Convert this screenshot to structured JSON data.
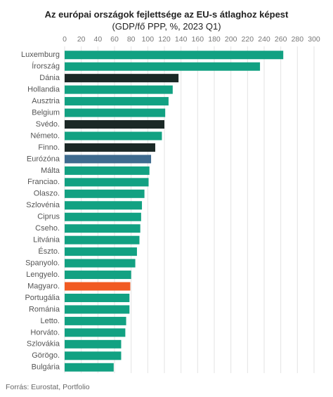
{
  "chart_data": {
    "type": "barh",
    "title": "Az európai országok fejlettsége az EU-s átlaghoz képest",
    "subtitle": "(GDP/fő PPP, %, 2023 Q1)",
    "source": "Forrás: Eurostat, Portfolio",
    "categories": [
      "Luxemburg",
      "Írország",
      "Dánia",
      "Hollandia",
      "Ausztria",
      "Belgium",
      "Svédo.",
      "Németo.",
      "Finno.",
      "Eurózóna",
      "Málta",
      "Franciao.",
      "Olaszo.",
      "Szlovénia",
      "Ciprus",
      "Cseho.",
      "Litvánia",
      "Észto.",
      "Spanyolo.",
      "Lengyelo.",
      "Magyaro.",
      "Portugália",
      "Románia",
      "Letto.",
      "Horváto.",
      "Szlovákia",
      "Görögo.",
      "Bulgária"
    ],
    "values": [
      263,
      235,
      137,
      130,
      125,
      121,
      120,
      117,
      109,
      104,
      102,
      101,
      96,
      93,
      92,
      91,
      90,
      87,
      85,
      80,
      79,
      78,
      78,
      74,
      73,
      68,
      68,
      59
    ],
    "colors": [
      "#12a182",
      "#12a182",
      "#1b2826",
      "#12a182",
      "#12a182",
      "#12a182",
      "#1b2826",
      "#12a182",
      "#1b2826",
      "#3e6b8f",
      "#12a182",
      "#12a182",
      "#12a182",
      "#12a182",
      "#12a182",
      "#12a182",
      "#12a182",
      "#12a182",
      "#12a182",
      "#12a182",
      "#f15a22",
      "#12a182",
      "#12a182",
      "#12a182",
      "#12a182",
      "#12a182",
      "#12a182",
      "#12a182"
    ],
    "xlim": [
      0,
      300
    ],
    "xticks": [
      0,
      20,
      40,
      60,
      80,
      100,
      120,
      140,
      160,
      180,
      200,
      220,
      240,
      260,
      280,
      300
    ],
    "grid": true
  }
}
